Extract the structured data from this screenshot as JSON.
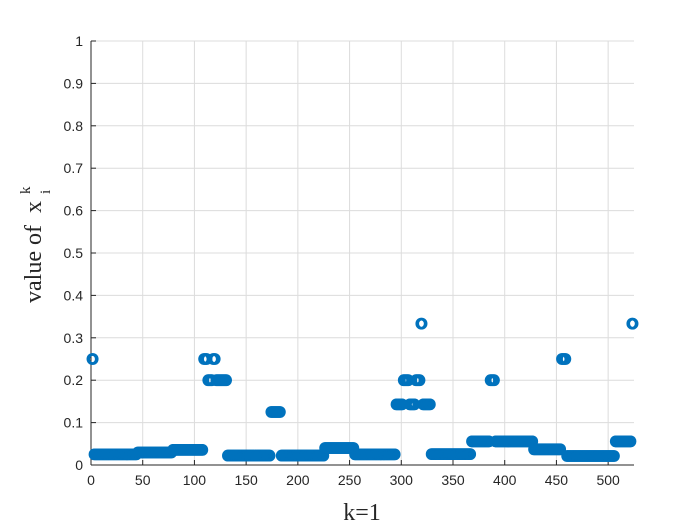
{
  "chart_data": {
    "type": "scatter",
    "xlabel": "k=1",
    "ylabel": {
      "prefix": "value of",
      "var": "x",
      "superscript": "k",
      "subscript": "i"
    },
    "xlim": [
      0,
      525
    ],
    "ylim": [
      0,
      1
    ],
    "xticks": [
      0,
      50,
      100,
      150,
      200,
      250,
      300,
      350,
      400,
      450,
      500
    ],
    "yticks": [
      0,
      0.1,
      0.2,
      0.3,
      0.4,
      0.5,
      0.6,
      0.7,
      0.8,
      0.9,
      1
    ],
    "xtick_labels": [
      "0",
      "50",
      "100",
      "150",
      "200",
      "250",
      "300",
      "350",
      "400",
      "450",
      "500"
    ],
    "ytick_labels": [
      "0",
      "0.1",
      "0.2",
      "0.3",
      "0.4",
      "0.5",
      "0.6",
      "0.7",
      "0.8",
      "0.9",
      "1"
    ],
    "grid": true,
    "marker": "o",
    "color": "#0072bd",
    "segments": [
      {
        "x_start": 1,
        "x_end": 2,
        "y": 0.25
      },
      {
        "x_start": 3,
        "x_end": 44,
        "y": 0.025
      },
      {
        "x_start": 45,
        "x_end": 78,
        "y": 0.0294
      },
      {
        "x_start": 79,
        "x_end": 108,
        "y": 0.0357
      },
      {
        "x_start": 109,
        "x_end": 112,
        "y": 0.25
      },
      {
        "x_start": 113,
        "x_end": 117,
        "y": 0.2
      },
      {
        "x_start": 118,
        "x_end": 120,
        "y": 0.25
      },
      {
        "x_start": 121,
        "x_end": 131,
        "y": 0.2
      },
      {
        "x_start": 132,
        "x_end": 173,
        "y": 0.0222
      },
      {
        "x_start": 174,
        "x_end": 183,
        "y": 0.125
      },
      {
        "x_start": 184,
        "x_end": 225,
        "y": 0.0222
      },
      {
        "x_start": 226,
        "x_end": 254,
        "y": 0.04
      },
      {
        "x_start": 255,
        "x_end": 294,
        "y": 0.025
      },
      {
        "x_start": 295,
        "x_end": 301,
        "y": 0.1429
      },
      {
        "x_start": 302,
        "x_end": 307,
        "y": 0.2
      },
      {
        "x_start": 308,
        "x_end": 313,
        "y": 0.1429
      },
      {
        "x_start": 314,
        "x_end": 318,
        "y": 0.2
      },
      {
        "x_start": 319,
        "x_end": 320,
        "y": 0.3333
      },
      {
        "x_start": 321,
        "x_end": 328,
        "y": 0.1429
      },
      {
        "x_start": 329,
        "x_end": 367,
        "y": 0.0256
      },
      {
        "x_start": 368,
        "x_end": 385,
        "y": 0.0556
      },
      {
        "x_start": 386,
        "x_end": 390,
        "y": 0.2
      },
      {
        "x_start": 391,
        "x_end": 427,
        "y": 0.0556
      },
      {
        "x_start": 428,
        "x_end": 454,
        "y": 0.037
      },
      {
        "x_start": 455,
        "x_end": 459,
        "y": 0.25
      },
      {
        "x_start": 460,
        "x_end": 506,
        "y": 0.0213
      },
      {
        "x_start": 507,
        "x_end": 522,
        "y": 0.0556
      },
      {
        "x_start": 523,
        "x_end": 524,
        "y": 0.3333
      }
    ]
  }
}
